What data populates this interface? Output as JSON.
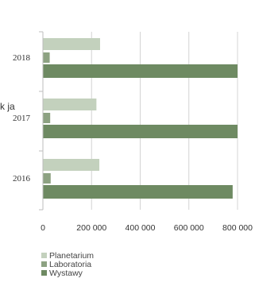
{
  "chart_data": {
    "type": "bar",
    "orientation": "horizontal",
    "categories": [
      "2018",
      "2017",
      "2016"
    ],
    "series": [
      {
        "name": "Planetarium",
        "values": [
          235000,
          220000,
          232000
        ],
        "color": "#c3d1bd"
      },
      {
        "name": "Laboratoria",
        "values": [
          28000,
          30000,
          32000
        ],
        "color": "#8da282"
      },
      {
        "name": "Wystawy",
        "values": [
          800000,
          800000,
          780000
        ],
        "color": "#6e8a62"
      }
    ],
    "xlim": [
      0,
      800000
    ],
    "x_ticks": [
      "0",
      "200 000",
      "400 000",
      "600 000",
      "800 000"
    ],
    "grid": true,
    "legend_position": "bottom-left",
    "partial_label_left": "k ja"
  }
}
